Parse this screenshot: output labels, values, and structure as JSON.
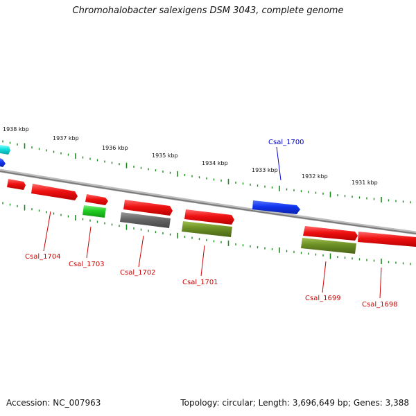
{
  "title": "Chromohalobacter salexigens DSM 3043, complete genome",
  "footer": {
    "accession": "Accession: NC_007963",
    "topology": "Topology: circular; Length: 3,696,649 bp; Genes: 3,388"
  },
  "scale_labels": [
    "1938 kbp",
    "1937 kbp",
    "1936 kbp",
    "1935 kbp",
    "1934 kbp",
    "1933 kbp",
    "1932 kbp",
    "1931 kbp"
  ],
  "gene_labels": [
    "Csal_1700",
    "Csal_1704",
    "Csal_1703",
    "Csal_1702",
    "Csal_1701",
    "Csal_1699",
    "Csal_1698"
  ],
  "colors": {
    "backbone": "#8a8a8a",
    "scale_ticks": "#1a8a1a",
    "red": "#ee1111",
    "green": "#22cc22",
    "gray": "#666666",
    "olive": "#6b8e23",
    "blue": "#1133ee",
    "cyan": "#11dddd",
    "label_red": "#cc0000",
    "label_blue": "#0000cc"
  }
}
